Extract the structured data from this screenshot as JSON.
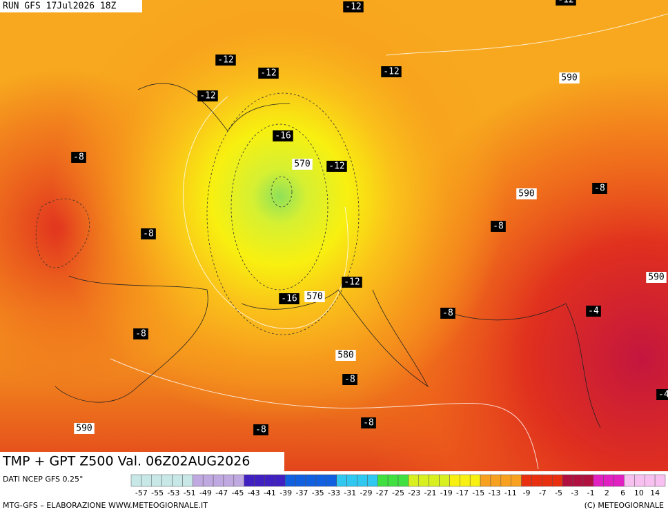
{
  "header": {
    "run": "RUN GFS 17Jul2026 18Z"
  },
  "title": "TMP + GPT Z500 Val. 06Z02AUG2026",
  "footer": {
    "source": "DATI NCEP GFS 0.25°",
    "credit": "MTG-GFS – ELABORAZIONE WWW.METEOGIORNALE.IT",
    "copyright": "(C) METEOGIORNALE"
  },
  "map_labels": [
    -12,
    -12,
    -12,
    -12,
    -12,
    590,
    -16,
    570,
    -12,
    -8,
    590,
    -8,
    -8,
    -8,
    -12,
    590,
    -16,
    570,
    -8,
    -4,
    -8,
    580,
    -8,
    -8,
    -8,
    590,
    -4,
    -12
  ],
  "colorbar": {
    "ticks": [
      -57,
      -55,
      -53,
      -51,
      -49,
      -47,
      -45,
      -43,
      -41,
      -39,
      -37,
      -35,
      -33,
      -31,
      -29,
      -27,
      -25,
      -23,
      -21,
      -19,
      -17,
      -15,
      -13,
      -11,
      -9,
      -7,
      -5,
      -3,
      -1,
      2,
      6,
      10,
      14
    ]
  }
}
